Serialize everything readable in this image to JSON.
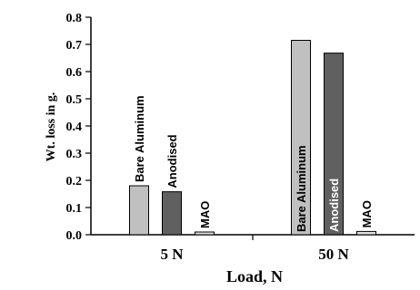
{
  "chart_data": {
    "type": "bar",
    "xlabel": "Load, N",
    "ylabel": "Wt. loss in g.",
    "ylim": [
      0,
      0.8
    ],
    "yticks": [
      "0.0",
      "0.1",
      "0.2",
      "0.3",
      "0.4",
      "0.5",
      "0.6",
      "0.7",
      "0.8"
    ],
    "categories": [
      "5 N",
      "50 N"
    ],
    "series": [
      {
        "name": "Bare Aluminum",
        "values": [
          0.18,
          0.715
        ],
        "color": "#c0c0c0"
      },
      {
        "name": "Anodised",
        "values": [
          0.158,
          0.668
        ],
        "color": "#606060"
      },
      {
        "name": "MAO",
        "values": [
          0.01,
          0.012
        ],
        "color": "#e0e0e0"
      }
    ],
    "grid": false,
    "legend": "none"
  }
}
